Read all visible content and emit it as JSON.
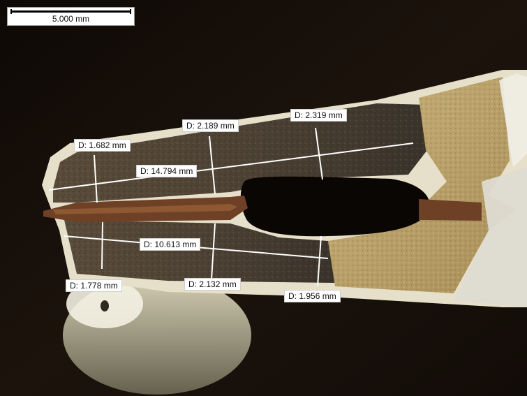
{
  "scale_bar": {
    "label": "5.000 mm"
  },
  "measurements": [
    {
      "id": "d-upper-left",
      "text": "D: 1.682 mm"
    },
    {
      "id": "d-upper-mid",
      "text": "D: 2.189 mm"
    },
    {
      "id": "d-upper-right",
      "text": "D: 2.319 mm"
    },
    {
      "id": "d-upper-length",
      "text": "D: 14.794 mm"
    },
    {
      "id": "d-lower-length",
      "text": "D: 10.613 mm"
    },
    {
      "id": "d-lower-left",
      "text": "D: 1.778 mm"
    },
    {
      "id": "d-lower-mid",
      "text": "D: 2.132 mm"
    },
    {
      "id": "d-lower-right",
      "text": "D: 1.956 mm"
    }
  ],
  "colors": {
    "background": "#1a120d",
    "pcb_dark": "#4a3f33",
    "pcb_gold": "#b8a06a",
    "copper": "#7a4b2c",
    "plating": "#e8e2cf",
    "measure_line": "#ffffff"
  }
}
